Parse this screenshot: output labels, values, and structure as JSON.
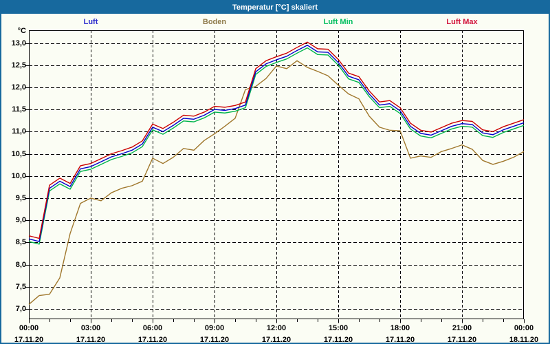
{
  "window": {
    "title": "Temperatur [°C] skaliert"
  },
  "legend": {
    "items": [
      {
        "label": "Luft",
        "color": "#2A2ACC"
      },
      {
        "label": "Boden",
        "color": "#8E7A4A"
      },
      {
        "label": "Luft Min",
        "color": "#00BE5E"
      },
      {
        "label": "Luft Max",
        "color": "#D2143C"
      }
    ]
  },
  "axes": {
    "y_unit": "°C",
    "y_ticks": [
      {
        "value": 13.0,
        "label": "13,0"
      },
      {
        "value": 12.5,
        "label": "12,5"
      },
      {
        "value": 12.0,
        "label": "12,0"
      },
      {
        "value": 11.5,
        "label": "11,5"
      },
      {
        "value": 11.0,
        "label": "11,0"
      },
      {
        "value": 10.5,
        "label": "10,5"
      },
      {
        "value": 10.0,
        "label": "10,0"
      },
      {
        "value": 9.5,
        "label": "9,5"
      },
      {
        "value": 9.0,
        "label": "9,0"
      },
      {
        "value": 8.5,
        "label": "8,5"
      },
      {
        "value": 8.0,
        "label": "8,0"
      },
      {
        "value": 7.5,
        "label": "7,5"
      },
      {
        "value": 7.0,
        "label": "7,0"
      }
    ],
    "x_ticks": [
      {
        "hour": 0,
        "time": "00:00",
        "date": "17.11.20"
      },
      {
        "hour": 3,
        "time": "03:00",
        "date": "17.11.20"
      },
      {
        "hour": 6,
        "time": "06:00",
        "date": "17.11.20"
      },
      {
        "hour": 9,
        "time": "09:00",
        "date": "17.11.20"
      },
      {
        "hour": 12,
        "time": "12:00",
        "date": "17.11.20"
      },
      {
        "hour": 15,
        "time": "15:00",
        "date": "17.11.20"
      },
      {
        "hour": 18,
        "time": "18:00",
        "date": "17.11.20"
      },
      {
        "hour": 21,
        "time": "21:00",
        "date": "17.11.20"
      },
      {
        "hour": 24,
        "time": "00:00",
        "date": "18.11.20"
      }
    ]
  },
  "chart_data": {
    "type": "line",
    "title": "Temperatur [°C] skaliert",
    "ylabel": "°C",
    "ylim": [
      6.8,
      13.3
    ],
    "grid": {
      "horizontal": "dashed every 0.5 °C",
      "vertical": "dashed every 3 h"
    },
    "legend_position": "top",
    "x_hours": [
      0,
      0.5,
      1,
      1.5,
      2,
      2.5,
      3,
      3.5,
      4,
      4.5,
      5,
      5.5,
      6,
      6.5,
      7,
      7.5,
      8,
      8.5,
      9,
      9.5,
      10,
      10.5,
      11,
      11.5,
      12,
      12.5,
      13,
      13.5,
      14,
      14.5,
      15,
      15.5,
      16,
      16.5,
      17,
      17.5,
      18,
      18.5,
      19,
      19.5,
      20,
      20.5,
      21,
      21.5,
      22,
      22.5,
      23,
      23.5,
      24
    ],
    "series": [
      {
        "name": "Boden",
        "color": "#A0782D",
        "values": [
          7.1,
          7.3,
          7.33,
          7.7,
          8.7,
          9.38,
          9.5,
          9.44,
          9.62,
          9.72,
          9.78,
          9.88,
          10.4,
          10.28,
          10.42,
          10.62,
          10.58,
          10.8,
          10.95,
          11.12,
          11.3,
          11.95,
          12.02,
          12.2,
          12.48,
          12.42,
          12.6,
          12.45,
          12.36,
          12.26,
          12.05,
          11.85,
          11.74,
          11.35,
          11.1,
          11.03,
          11.02,
          10.4,
          10.45,
          10.42,
          10.55,
          10.62,
          10.7,
          10.6,
          10.35,
          10.26,
          10.33,
          10.42,
          10.55
        ]
      },
      {
        "name": "Luft Min",
        "color": "#00B44C",
        "values": [
          8.52,
          8.46,
          9.66,
          9.82,
          9.7,
          10.1,
          10.15,
          10.26,
          10.37,
          10.44,
          10.52,
          10.66,
          11.04,
          10.94,
          11.08,
          11.24,
          11.22,
          11.31,
          11.44,
          11.42,
          11.46,
          11.54,
          12.29,
          12.47,
          12.56,
          12.64,
          12.77,
          12.89,
          12.74,
          12.73,
          12.5,
          12.19,
          12.11,
          11.79,
          11.54,
          11.57,
          11.41,
          11.06,
          10.9,
          10.86,
          10.96,
          11.06,
          11.12,
          11.1,
          10.91,
          10.87,
          10.98,
          11.06,
          11.14
        ]
      },
      {
        "name": "Luft",
        "color": "#0000CC",
        "values": [
          8.58,
          8.52,
          9.72,
          9.88,
          9.76,
          10.16,
          10.21,
          10.32,
          10.43,
          10.5,
          10.58,
          10.72,
          11.1,
          11.0,
          11.14,
          11.3,
          11.28,
          11.37,
          11.5,
          11.48,
          11.52,
          11.6,
          12.35,
          12.53,
          12.62,
          12.7,
          12.83,
          12.95,
          12.8,
          12.79,
          12.56,
          12.25,
          12.17,
          11.85,
          11.6,
          11.63,
          11.47,
          11.12,
          10.96,
          10.92,
          11.02,
          11.12,
          11.18,
          11.16,
          10.97,
          10.93,
          11.04,
          11.12,
          11.2
        ]
      },
      {
        "name": "Luft Max",
        "color": "#CC0000",
        "values": [
          8.65,
          8.59,
          9.79,
          9.95,
          9.83,
          10.23,
          10.28,
          10.39,
          10.5,
          10.57,
          10.65,
          10.79,
          11.17,
          11.07,
          11.21,
          11.37,
          11.35,
          11.44,
          11.57,
          11.55,
          11.59,
          11.67,
          12.42,
          12.6,
          12.69,
          12.77,
          12.9,
          13.02,
          12.87,
          12.86,
          12.63,
          12.32,
          12.24,
          11.92,
          11.67,
          11.7,
          11.54,
          11.19,
          11.03,
          10.99,
          11.09,
          11.19,
          11.25,
          11.23,
          11.04,
          11.0,
          11.11,
          11.19,
          11.27
        ]
      }
    ]
  }
}
